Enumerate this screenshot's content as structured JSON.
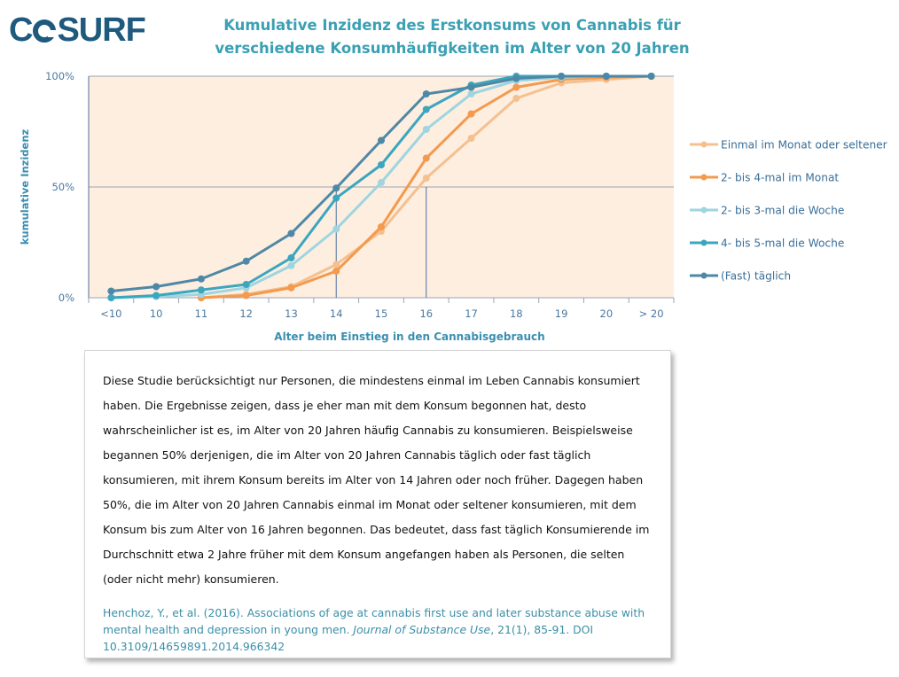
{
  "logo": {
    "text_pre": "C",
    "text_post": "SURF"
  },
  "title": {
    "line1": "Kumulative Inzidenz des Erstkonsums von Cannabis für",
    "line2": "verschiedene Konsumhäufigkeiten im Alter von 20 Jahren"
  },
  "chart_data": {
    "type": "line",
    "x_categories": [
      "<10",
      "10",
      "11",
      "12",
      "13",
      "14",
      "15",
      "16",
      "17",
      "18",
      "19",
      "20",
      "> 20"
    ],
    "xlabel": "Alter beim Einstieg in den Cannabisgebrauch",
    "ylabel": "kumulative Inzidenz",
    "y_ticks": [
      "0%",
      "50%",
      "100%"
    ],
    "ylim": [
      0,
      100
    ],
    "grid": "horizontal at 50% and 100%",
    "legend_position": "right",
    "series": [
      {
        "name": "Einmal im Monat oder seltener",
        "color": "#f5c090",
        "values": [
          null,
          null,
          0,
          1.5,
          5,
          15,
          30,
          54,
          72,
          90,
          97,
          98.5,
          100
        ]
      },
      {
        "name": "2- bis 4-mal im Monat",
        "color": "#f39a4e",
        "values": [
          null,
          null,
          0,
          1,
          4.5,
          12,
          32,
          63,
          83,
          95,
          98.5,
          99.5,
          100
        ]
      },
      {
        "name": "2- bis 3-mal die Woche",
        "color": "#9ed5e0",
        "values": [
          0,
          0.5,
          1.5,
          4.5,
          14.5,
          31,
          52,
          76,
          92,
          98,
          99.5,
          100,
          100
        ]
      },
      {
        "name": "4- bis 5-mal die Woche",
        "color": "#3ba6bf",
        "values": [
          0,
          1,
          3.5,
          6,
          18,
          45,
          60,
          85,
          96,
          100,
          100,
          100,
          100
        ]
      },
      {
        "name": "(Fast) täglich",
        "color": "#4f88a6",
        "values": [
          3,
          5,
          8.5,
          16.5,
          29,
          49.5,
          71,
          92,
          95,
          99,
          100,
          100,
          100
        ]
      }
    ],
    "reference_lines_x": [
      "14",
      "16"
    ]
  },
  "textbox": {
    "body": "Diese Studie berücksichtigt nur Personen, die mindestens einmal im Leben Cannabis konsumiert haben. Die Ergebnisse zeigen, dass je eher man mit dem Konsum begonnen hat, desto wahrscheinlicher ist es, im Alter von 20 Jahren häufig Cannabis zu konsumieren. Beispielsweise begannen 50% derjenigen, die im Alter von 20 Jahren Cannabis täglich oder fast täglich konsumieren, mit ihrem Konsum bereits im Alter von 14 Jahren oder noch früher. Dagegen haben 50%, die im Alter von 20 Jahren Cannabis einmal im Monat oder seltener konsumieren, mit dem Konsum bis zum Alter von 16 Jahren begonnen. Das bedeutet, dass fast täglich Konsumierende im Durchschnitt etwa 2 Jahre früher mit dem Konsum angefangen haben als Personen, die selten (oder nicht mehr) konsumieren.",
    "cite_authors": "Henchoz, Y., et al. (2016). Associations of age at cannabis first use and later substance abuse with mental health and depression in young men.",
    "cite_journal": "Journal of Substance Use",
    "cite_rest": ", 21(1), 85-91. DOI 10.3109/14659891.2014.966342"
  }
}
